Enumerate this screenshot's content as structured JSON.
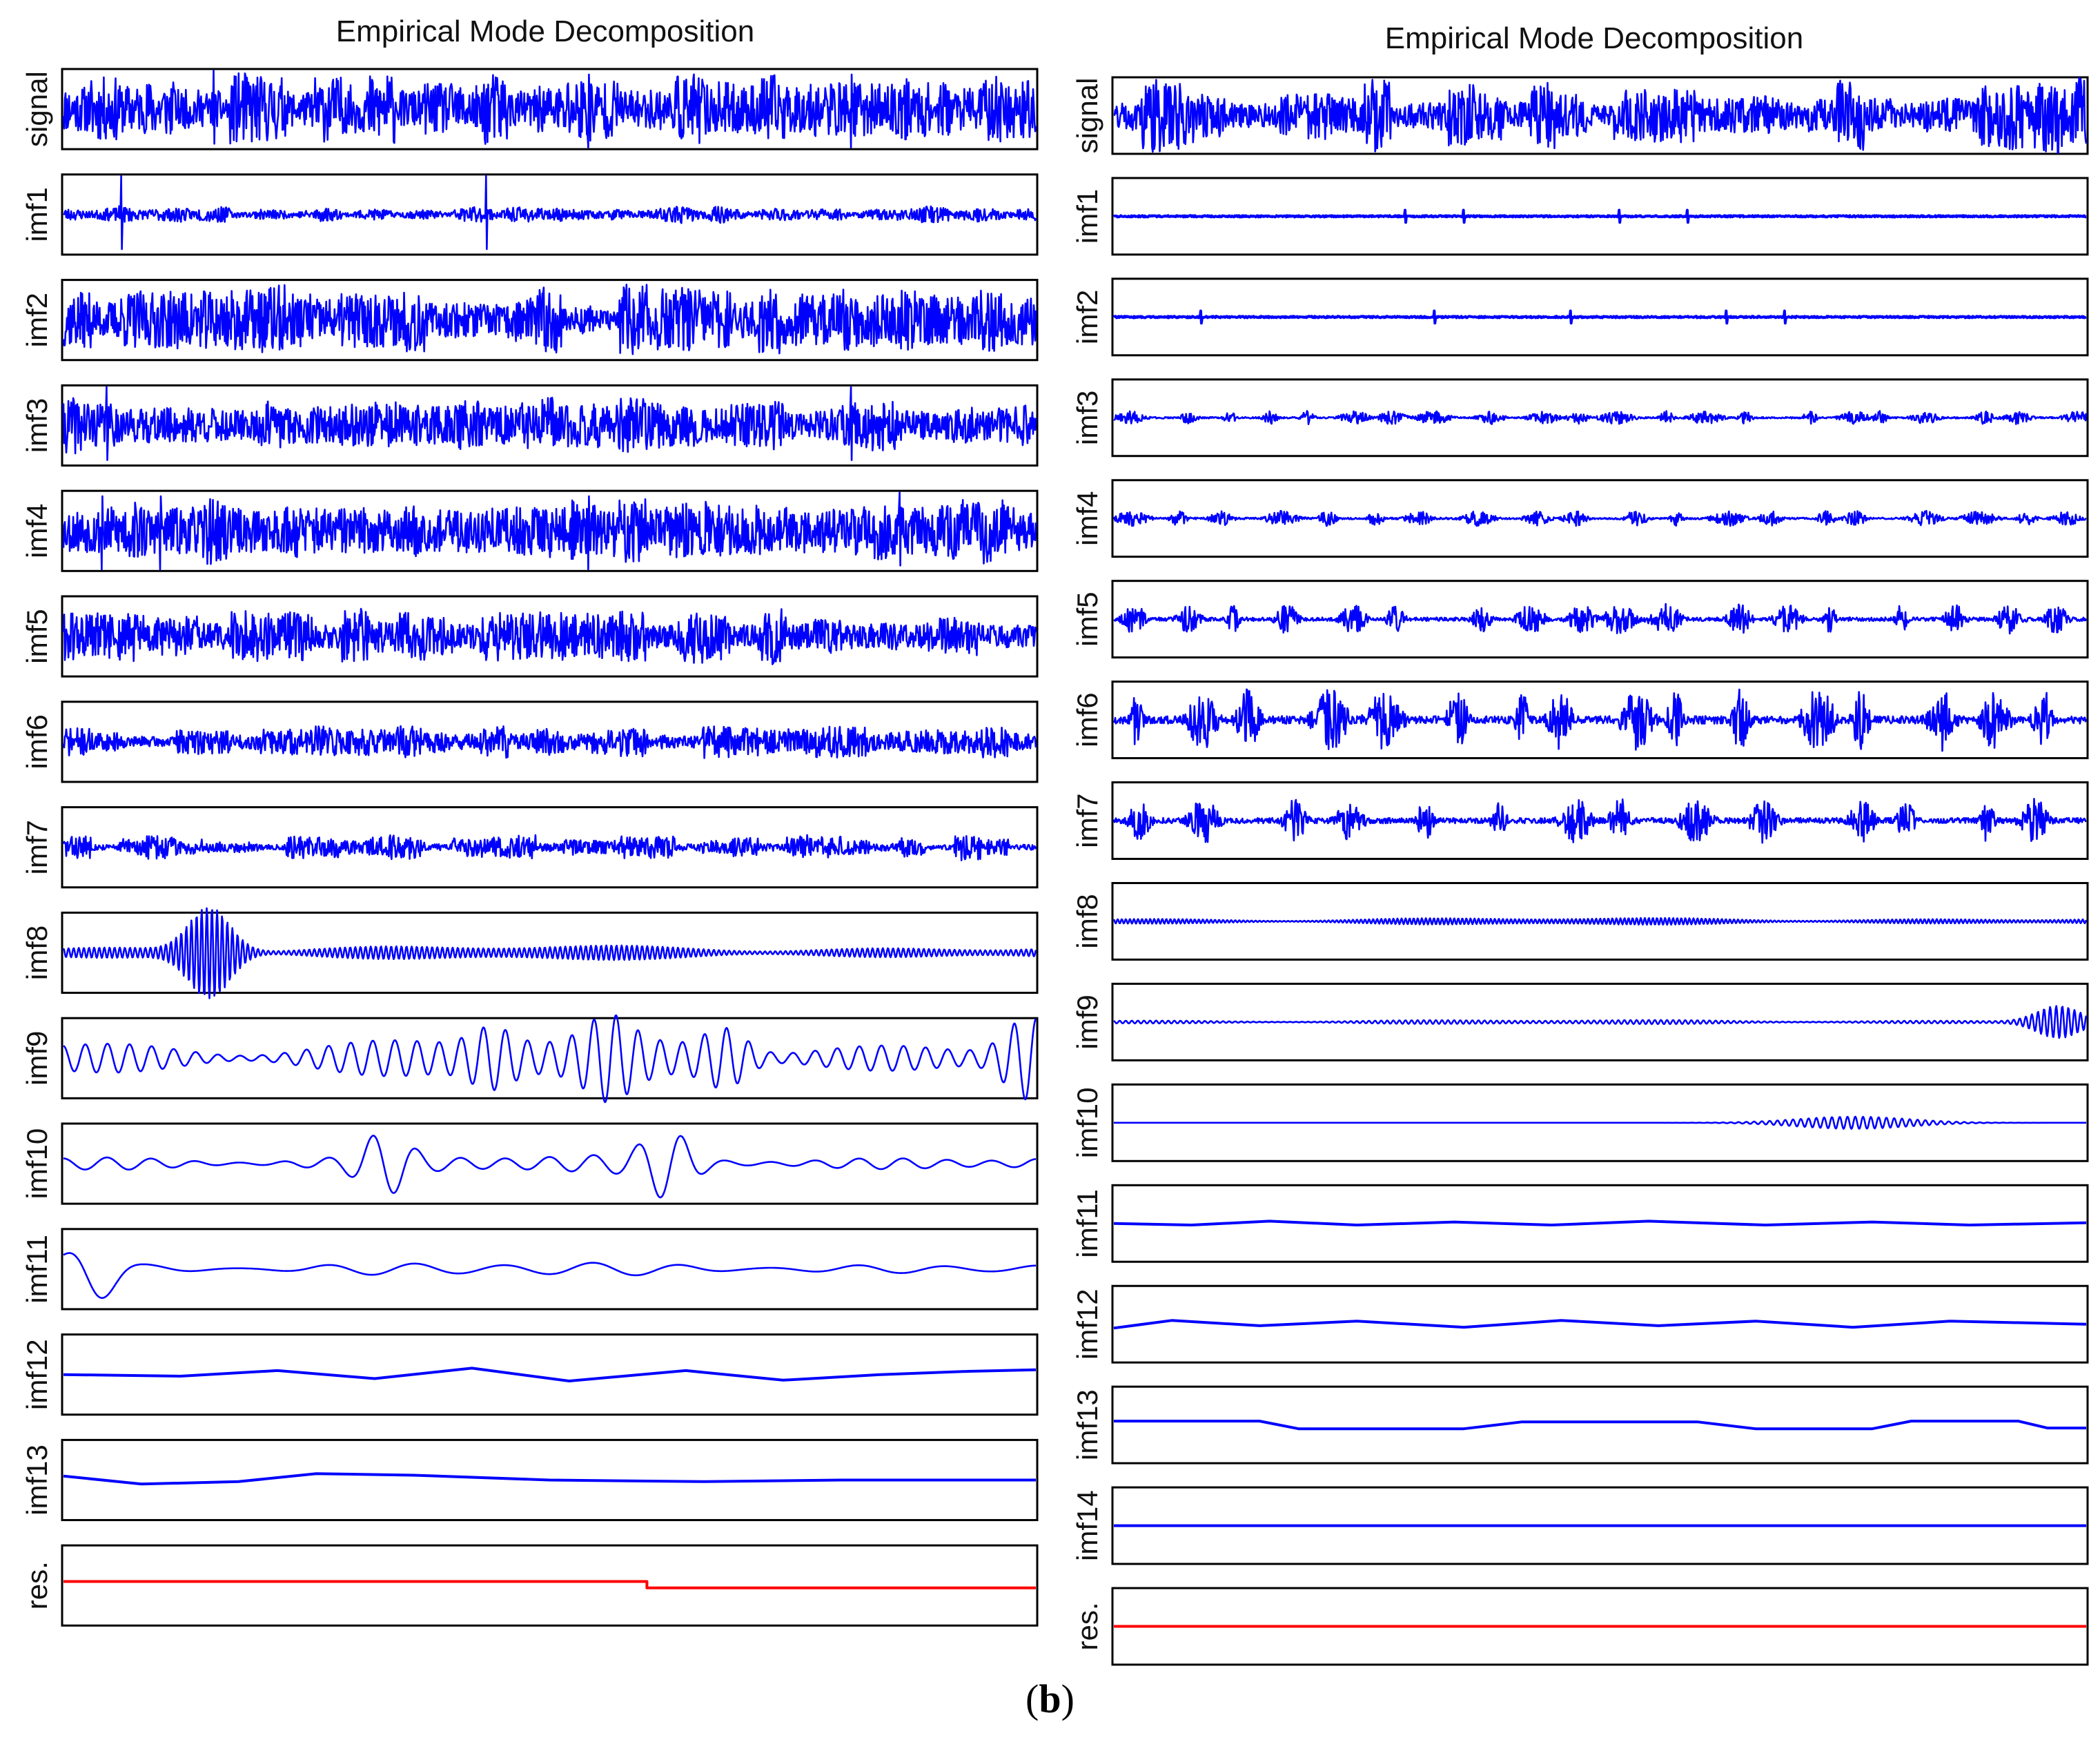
{
  "caption": {
    "open": "(",
    "letter": "b",
    "close": ")"
  },
  "colors": {
    "signal": "#0000ff",
    "residual": "#ff0000"
  },
  "chart_data": [
    {
      "type": "line",
      "title": "Empirical Mode Decomposition",
      "xlabel": "",
      "ylabel": "",
      "grid": false,
      "legend": "none",
      "rows": [
        {
          "label": "signal",
          "kind": "noise",
          "amp": 0.34,
          "burst": 0.35,
          "seed": 11,
          "spikes": [
            0.155,
            0.54,
            0.81
          ],
          "color": "#0000ff"
        },
        {
          "label": "imf1",
          "kind": "spiky",
          "amp": 0.07,
          "burst": 0.35,
          "seed": 23,
          "spikes": [
            0.06,
            0.435
          ],
          "color": "#0000ff"
        },
        {
          "label": "imf2",
          "kind": "noise",
          "amp": 0.3,
          "burst": 0.55,
          "seed": 37,
          "spikes": [],
          "color": "#0000ff"
        },
        {
          "label": "imf3",
          "kind": "noise",
          "amp": 0.26,
          "burst": 0.35,
          "seed": 41,
          "spikes": [
            0.045,
            0.81
          ],
          "color": "#0000ff"
        },
        {
          "label": "imf4",
          "kind": "noise",
          "amp": 0.34,
          "burst": 0.25,
          "seed": 53,
          "spikes": [
            0.04,
            0.1,
            0.54,
            0.86
          ],
          "color": "#0000ff"
        },
        {
          "label": "imf5",
          "kind": "noise",
          "amp": 0.25,
          "burst": 0.45,
          "seed": 61,
          "spikes": [],
          "color": "#0000ff"
        },
        {
          "label": "imf6",
          "kind": "noise",
          "amp": 0.14,
          "burst": 0.55,
          "seed": 71,
          "spikes": [],
          "color": "#0000ff"
        },
        {
          "label": "imf7",
          "kind": "noise",
          "amp": 0.1,
          "burst": 0.7,
          "seed": 83,
          "spikes": [],
          "color": "#0000ff"
        },
        {
          "label": "imf8",
          "kind": "osc",
          "cycles": 190,
          "amp": 0.1,
          "seed": 97,
          "events": [
            [
              0.15,
              0.55
            ]
          ],
          "color": "#0000ff"
        },
        {
          "label": "imf9",
          "kind": "osc",
          "cycles": 44,
          "amp": 0.28,
          "seed": 101,
          "events": [
            [
              0.44,
              0.25
            ],
            [
              0.56,
              0.3
            ],
            [
              0.68,
              0.3
            ],
            [
              0.99,
              0.4
            ]
          ],
          "color": "#0000ff"
        },
        {
          "label": "imf10",
          "kind": "osc",
          "cycles": 22,
          "amp": 0.12,
          "seed": 113,
          "events": [
            [
              0.33,
              0.3
            ],
            [
              0.62,
              0.35
            ]
          ],
          "color": "#0000ff"
        },
        {
          "label": "imf11",
          "kind": "osc",
          "cycles": 11,
          "amp": 0.09,
          "seed": 127,
          "events": [
            [
              0.03,
              0.35
            ]
          ],
          "color": "#0000ff"
        },
        {
          "label": "imf12",
          "kind": "smooth",
          "color": "#0000ff",
          "points": [
            [
              0,
              0.5
            ],
            [
              0.12,
              0.52
            ],
            [
              0.22,
              0.45
            ],
            [
              0.32,
              0.55
            ],
            [
              0.42,
              0.42
            ],
            [
              0.52,
              0.58
            ],
            [
              0.64,
              0.45
            ],
            [
              0.74,
              0.57
            ],
            [
              0.84,
              0.5
            ],
            [
              0.93,
              0.46
            ],
            [
              1.0,
              0.44
            ]
          ]
        },
        {
          "label": "imf13",
          "kind": "smooth",
          "color": "#0000ff",
          "points": [
            [
              0,
              0.45
            ],
            [
              0.08,
              0.55
            ],
            [
              0.18,
              0.52
            ],
            [
              0.26,
              0.42
            ],
            [
              0.36,
              0.44
            ],
            [
              0.5,
              0.5
            ],
            [
              0.66,
              0.52
            ],
            [
              0.8,
              0.5
            ],
            [
              1.0,
              0.5
            ]
          ]
        },
        {
          "label": "res.",
          "kind": "step",
          "color": "#ff0000",
          "points": [
            [
              0,
              0.45
            ],
            [
              0.6,
              0.45
            ],
            [
              0.6,
              0.53
            ],
            [
              1.0,
              0.53
            ]
          ]
        }
      ]
    },
    {
      "type": "line",
      "title": "Empirical Mode Decomposition",
      "xlabel": "",
      "ylabel": "",
      "grid": false,
      "legend": "none",
      "rows": [
        {
          "label": "signal",
          "kind": "noise",
          "amp": 0.32,
          "burst": 0.6,
          "seed": 131,
          "spikes": [],
          "color": "#0000ff"
        },
        {
          "label": "imf1",
          "kind": "flat",
          "amp": 0.01,
          "seed": 137,
          "spikes": [
            0.3,
            0.36,
            0.52,
            0.59
          ],
          "color": "#0000ff"
        },
        {
          "label": "imf2",
          "kind": "flat",
          "amp": 0.01,
          "seed": 139,
          "spikes": [
            0.09,
            0.33,
            0.47,
            0.63,
            0.69
          ],
          "color": "#0000ff"
        },
        {
          "label": "imf3",
          "kind": "burst",
          "amp": 0.09,
          "bursts": 22,
          "seed": 149,
          "color": "#0000ff"
        },
        {
          "label": "imf4",
          "kind": "burst",
          "amp": 0.1,
          "bursts": 20,
          "seed": 151,
          "color": "#0000ff"
        },
        {
          "label": "imf5",
          "kind": "burst",
          "amp": 0.2,
          "bursts": 18,
          "seed": 157,
          "color": "#0000ff"
        },
        {
          "label": "imf6",
          "kind": "burst",
          "amp": 0.42,
          "bursts": 16,
          "seed": 163,
          "color": "#0000ff"
        },
        {
          "label": "imf7",
          "kind": "burst",
          "amp": 0.3,
          "bursts": 14,
          "seed": 167,
          "color": "#0000ff"
        },
        {
          "label": "imf8",
          "kind": "osc",
          "cycles": 240,
          "amp": 0.05,
          "seed": 173,
          "events": [],
          "color": "#0000ff"
        },
        {
          "label": "imf9",
          "kind": "osc",
          "cycles": 160,
          "amp": 0.03,
          "seed": 179,
          "events": [
            [
              0.97,
              0.2
            ]
          ],
          "color": "#0000ff"
        },
        {
          "label": "imf10",
          "kind": "packet",
          "amp": 0.08,
          "cycles": 10,
          "center": 0.76,
          "width": 0.08,
          "color": "#0000ff"
        },
        {
          "label": "imf11",
          "kind": "smooth",
          "color": "#0000ff",
          "points": [
            [
              0,
              0.5
            ],
            [
              0.08,
              0.52
            ],
            [
              0.16,
              0.47
            ],
            [
              0.25,
              0.52
            ],
            [
              0.35,
              0.48
            ],
            [
              0.45,
              0.52
            ],
            [
              0.55,
              0.47
            ],
            [
              0.67,
              0.52
            ],
            [
              0.78,
              0.48
            ],
            [
              0.88,
              0.52
            ],
            [
              1.0,
              0.49
            ]
          ]
        },
        {
          "label": "imf12",
          "kind": "smooth",
          "color": "#0000ff",
          "points": [
            [
              0,
              0.55
            ],
            [
              0.06,
              0.45
            ],
            [
              0.15,
              0.52
            ],
            [
              0.25,
              0.46
            ],
            [
              0.36,
              0.54
            ],
            [
              0.46,
              0.45
            ],
            [
              0.56,
              0.52
            ],
            [
              0.66,
              0.46
            ],
            [
              0.76,
              0.54
            ],
            [
              0.86,
              0.46
            ],
            [
              1.0,
              0.5
            ]
          ]
        },
        {
          "label": "imf13",
          "kind": "smooth",
          "color": "#0000ff",
          "points": [
            [
              0,
              0.45
            ],
            [
              0.15,
              0.45
            ],
            [
              0.19,
              0.55
            ],
            [
              0.36,
              0.55
            ],
            [
              0.42,
              0.46
            ],
            [
              0.6,
              0.46
            ],
            [
              0.66,
              0.55
            ],
            [
              0.78,
              0.55
            ],
            [
              0.82,
              0.45
            ],
            [
              0.93,
              0.45
            ],
            [
              0.96,
              0.54
            ],
            [
              1.0,
              0.54
            ]
          ]
        },
        {
          "label": "imf14",
          "kind": "flat",
          "amp": 0.0,
          "seed": 181,
          "spikes": [],
          "color": "#0000ff"
        },
        {
          "label": "res.",
          "kind": "flat",
          "amp": 0.0,
          "seed": 191,
          "spikes": [],
          "color": "#ff0000"
        }
      ]
    }
  ]
}
